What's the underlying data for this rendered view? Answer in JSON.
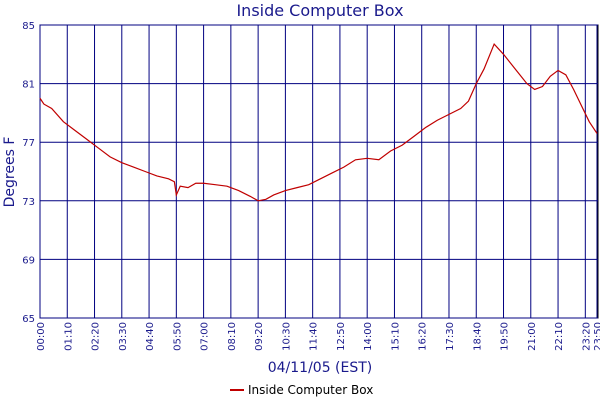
{
  "chart_data": {
    "type": "line",
    "title": "Inside Computer Box",
    "xlabel": "04/11/05 (EST)",
    "ylabel": "Degrees F",
    "xlim": [
      0,
      1430
    ],
    "xticks": [
      {
        "value": 0,
        "label": "00:00"
      },
      {
        "value": 70,
        "label": "01:10"
      },
      {
        "value": 140,
        "label": "02:20"
      },
      {
        "value": 210,
        "label": "03:30"
      },
      {
        "value": 280,
        "label": "04:40"
      },
      {
        "value": 350,
        "label": "05:50"
      },
      {
        "value": 420,
        "label": "07:00"
      },
      {
        "value": 490,
        "label": "08:10"
      },
      {
        "value": 560,
        "label": "09:20"
      },
      {
        "value": 630,
        "label": "10:30"
      },
      {
        "value": 700,
        "label": "11:40"
      },
      {
        "value": 770,
        "label": "12:50"
      },
      {
        "value": 840,
        "label": "14:00"
      },
      {
        "value": 910,
        "label": "15:10"
      },
      {
        "value": 980,
        "label": "16:20"
      },
      {
        "value": 1050,
        "label": "17:30"
      },
      {
        "value": 1120,
        "label": "18:40"
      },
      {
        "value": 1190,
        "label": "19:50"
      },
      {
        "value": 1260,
        "label": "21:00"
      },
      {
        "value": 1330,
        "label": "22:10"
      },
      {
        "value": 1400,
        "label": "23:20"
      },
      {
        "value": 1430,
        "label": "23:50"
      }
    ],
    "ylim": [
      65,
      85
    ],
    "yticks": [
      65,
      69,
      73,
      77,
      81,
      85
    ],
    "grid": true,
    "x": [
      0,
      10,
      30,
      60,
      90,
      120,
      150,
      180,
      210,
      240,
      270,
      300,
      330,
      345,
      350,
      360,
      380,
      400,
      420,
      450,
      480,
      510,
      540,
      560,
      580,
      600,
      630,
      660,
      690,
      720,
      750,
      780,
      810,
      840,
      870,
      900,
      930,
      960,
      990,
      1020,
      1050,
      1080,
      1100,
      1120,
      1140,
      1166,
      1190,
      1220,
      1250,
      1270,
      1290,
      1310,
      1330,
      1350,
      1370,
      1390,
      1410,
      1430
    ],
    "series": [
      {
        "name": "Inside Computer Box",
        "color": "#c00000",
        "values": [
          80.0,
          79.6,
          79.3,
          78.4,
          77.8,
          77.2,
          76.6,
          76.0,
          75.6,
          75.3,
          75.0,
          74.7,
          74.5,
          74.3,
          73.4,
          74.0,
          73.9,
          74.2,
          74.2,
          74.1,
          74.0,
          73.7,
          73.3,
          73.0,
          73.1,
          73.4,
          73.7,
          73.9,
          74.1,
          74.5,
          74.9,
          75.3,
          75.8,
          75.9,
          75.8,
          76.4,
          76.8,
          77.4,
          78.0,
          78.5,
          78.9,
          79.3,
          79.8,
          81.0,
          82.0,
          83.7,
          83.0,
          82.0,
          81.0,
          80.6,
          80.8,
          81.5,
          81.9,
          81.6,
          80.6,
          79.5,
          78.4,
          77.6
        ]
      }
    ]
  }
}
